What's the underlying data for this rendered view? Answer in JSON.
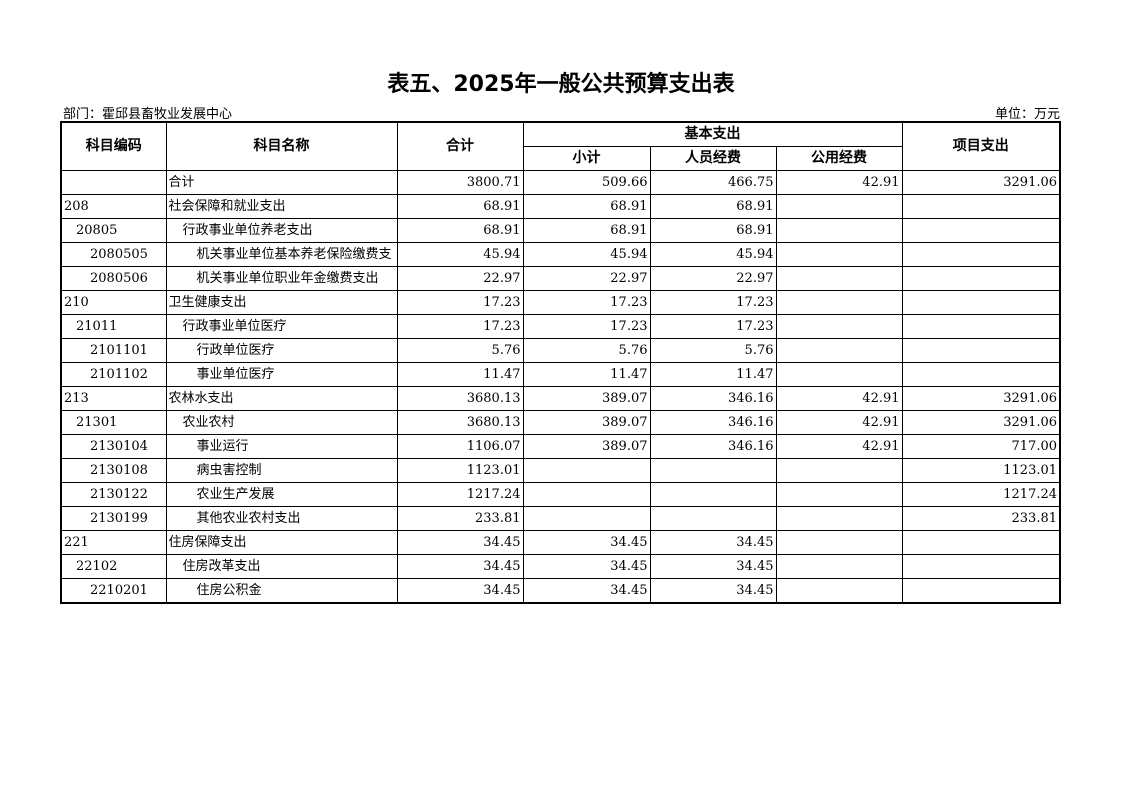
{
  "title": "表五、2025年一般公共预算支出表",
  "department": "部门：霍邱县畜牧业发展中心",
  "unit": "单位：万元",
  "headers": {
    "code": "科目编码",
    "name": "科目名称",
    "total": "合计",
    "basic": "基本支出",
    "subtotal": "小计",
    "personnel": "人员经费",
    "public": "公用经费",
    "project": "项目支出"
  },
  "rows": [
    {
      "code": "",
      "name": "合计",
      "level": 0,
      "total": "3800.71",
      "subtotal": "509.66",
      "personnel": "466.75",
      "public": "42.91",
      "project": "3291.06"
    },
    {
      "code": "208",
      "name": "社会保障和就业支出",
      "level": 0,
      "total": "68.91",
      "subtotal": "68.91",
      "personnel": "68.91",
      "public": "",
      "project": ""
    },
    {
      "code": "20805",
      "name": "行政事业单位养老支出",
      "level": 1,
      "total": "68.91",
      "subtotal": "68.91",
      "personnel": "68.91",
      "public": "",
      "project": ""
    },
    {
      "code": "2080505",
      "name": "机关事业单位基本养老保险缴费支",
      "level": 2,
      "total": "45.94",
      "subtotal": "45.94",
      "personnel": "45.94",
      "public": "",
      "project": ""
    },
    {
      "code": "2080506",
      "name": "机关事业单位职业年金缴费支出",
      "level": 2,
      "total": "22.97",
      "subtotal": "22.97",
      "personnel": "22.97",
      "public": "",
      "project": ""
    },
    {
      "code": "210",
      "name": "卫生健康支出",
      "level": 0,
      "total": "17.23",
      "subtotal": "17.23",
      "personnel": "17.23",
      "public": "",
      "project": ""
    },
    {
      "code": "21011",
      "name": "行政事业单位医疗",
      "level": 1,
      "total": "17.23",
      "subtotal": "17.23",
      "personnel": "17.23",
      "public": "",
      "project": ""
    },
    {
      "code": "2101101",
      "name": "行政单位医疗",
      "level": 2,
      "total": "5.76",
      "subtotal": "5.76",
      "personnel": "5.76",
      "public": "",
      "project": ""
    },
    {
      "code": "2101102",
      "name": "事业单位医疗",
      "level": 2,
      "total": "11.47",
      "subtotal": "11.47",
      "personnel": "11.47",
      "public": "",
      "project": ""
    },
    {
      "code": "213",
      "name": "农林水支出",
      "level": 0,
      "total": "3680.13",
      "subtotal": "389.07",
      "personnel": "346.16",
      "public": "42.91",
      "project": "3291.06"
    },
    {
      "code": "21301",
      "name": "农业农村",
      "level": 1,
      "total": "3680.13",
      "subtotal": "389.07",
      "personnel": "346.16",
      "public": "42.91",
      "project": "3291.06"
    },
    {
      "code": "2130104",
      "name": "事业运行",
      "level": 2,
      "total": "1106.07",
      "subtotal": "389.07",
      "personnel": "346.16",
      "public": "42.91",
      "project": "717.00"
    },
    {
      "code": "2130108",
      "name": "病虫害控制",
      "level": 2,
      "total": "1123.01",
      "subtotal": "",
      "personnel": "",
      "public": "",
      "project": "1123.01"
    },
    {
      "code": "2130122",
      "name": "农业生产发展",
      "level": 2,
      "total": "1217.24",
      "subtotal": "",
      "personnel": "",
      "public": "",
      "project": "1217.24"
    },
    {
      "code": "2130199",
      "name": "其他农业农村支出",
      "level": 2,
      "total": "233.81",
      "subtotal": "",
      "personnel": "",
      "public": "",
      "project": "233.81"
    },
    {
      "code": "221",
      "name": "住房保障支出",
      "level": 0,
      "total": "34.45",
      "subtotal": "34.45",
      "personnel": "34.45",
      "public": "",
      "project": ""
    },
    {
      "code": "22102",
      "name": "住房改革支出",
      "level": 1,
      "total": "34.45",
      "subtotal": "34.45",
      "personnel": "34.45",
      "public": "",
      "project": ""
    },
    {
      "code": "2210201",
      "name": "住房公积金",
      "level": 2,
      "total": "34.45",
      "subtotal": "34.45",
      "personnel": "34.45",
      "public": "",
      "project": ""
    }
  ]
}
